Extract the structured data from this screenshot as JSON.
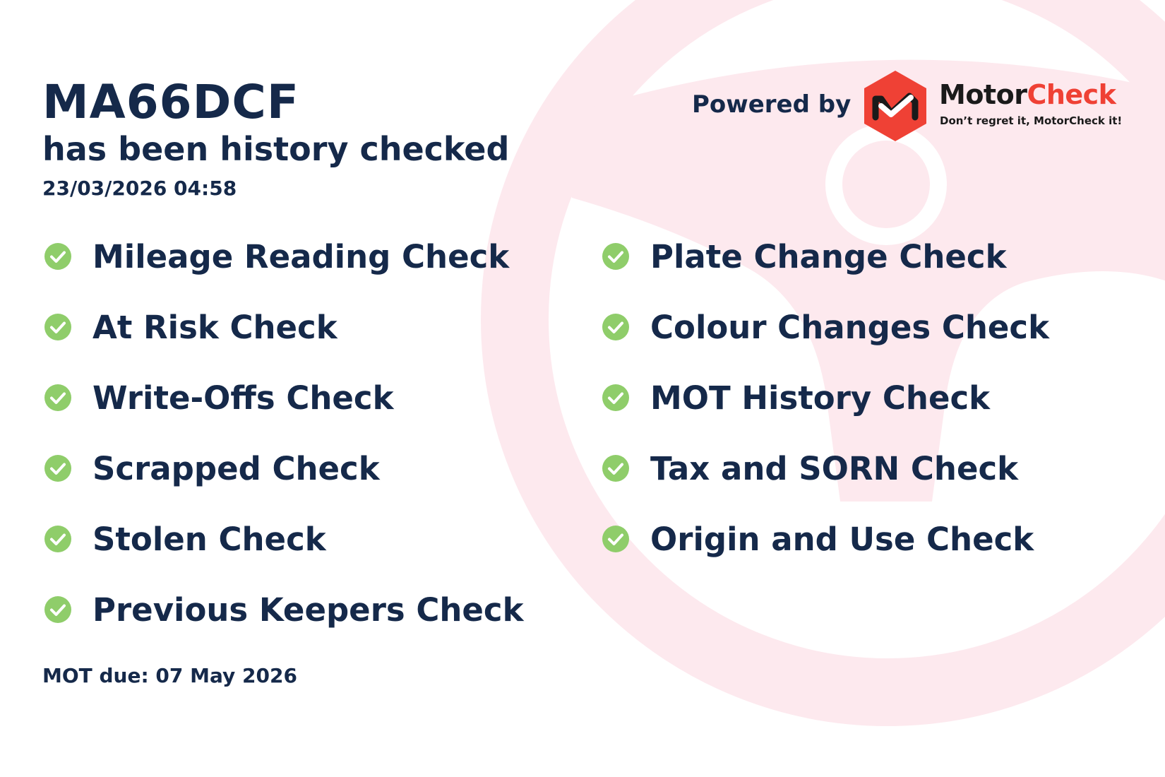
{
  "header": {
    "plate": "MA66DCF",
    "subtitle": "has been history checked",
    "datetime": "23/03/2026 04:58"
  },
  "branding": {
    "powered_by": "Powered by",
    "brand_part1": "Motor",
    "brand_part2": "Check",
    "tagline": "Don’t regret it, MotorCheck it!",
    "brand_color": "#ef4135"
  },
  "checks_left": [
    {
      "label": "Mileage Reading Check",
      "status": "passed"
    },
    {
      "label": "At Risk Check",
      "status": "passed"
    },
    {
      "label": "Write-Offs Check",
      "status": "passed"
    },
    {
      "label": "Scrapped Check",
      "status": "passed"
    },
    {
      "label": "Stolen Check",
      "status": "passed"
    },
    {
      "label": "Previous Keepers Check",
      "status": "passed"
    }
  ],
  "checks_right": [
    {
      "label": "Plate Change Check",
      "status": "passed"
    },
    {
      "label": "Colour Changes Check",
      "status": "passed"
    },
    {
      "label": "MOT History Check",
      "status": "passed"
    },
    {
      "label": "Tax and SORN Check",
      "status": "passed"
    },
    {
      "label": "Origin and Use Check",
      "status": "passed"
    }
  ],
  "footer": {
    "mot_due": "MOT due: 07 May 2026"
  },
  "colors": {
    "text": "#15294a",
    "check": "#8fcd6a",
    "watermark": "#fde9ee"
  },
  "icons": {
    "check": "check-circle-icon",
    "watermark": "steering-wheel-icon"
  }
}
